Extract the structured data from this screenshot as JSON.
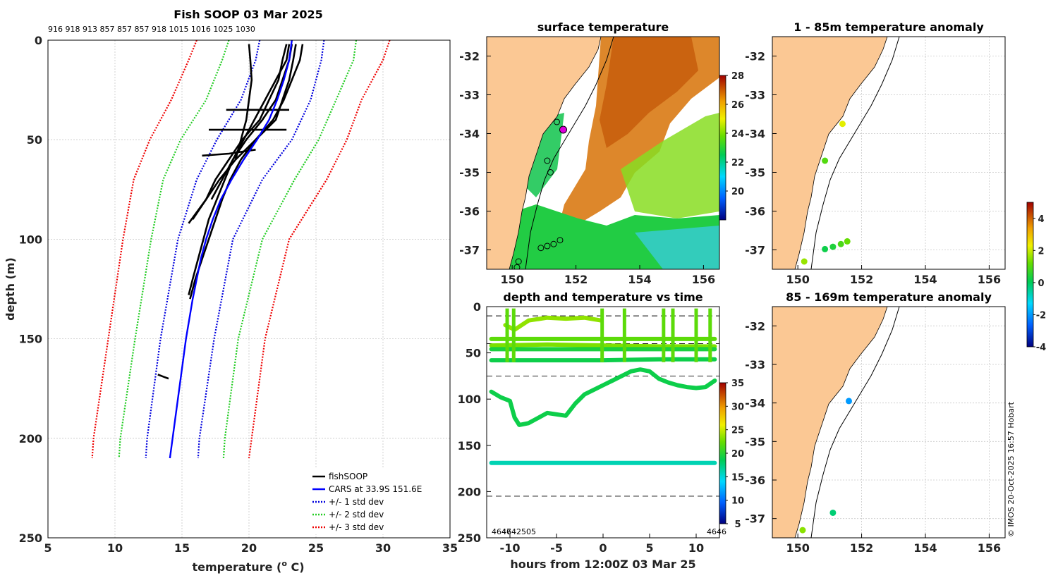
{
  "chart_data": [
    {
      "type": "line",
      "title": "Fish SOOP 03 Mar 2025",
      "top_annotation": "916 918 913 857 857 857 918 1015 1016 1025 1030",
      "xlabel_pre": "temperature (",
      "xlabel_sup": "o",
      "xlabel_post": " C)",
      "ylabel": "depth (m)",
      "xlim": [
        5,
        35
      ],
      "ylim": [
        250,
        0
      ],
      "xticks": [
        5,
        10,
        15,
        20,
        25,
        30,
        35
      ],
      "yticks": [
        0,
        50,
        100,
        150,
        200,
        250
      ],
      "legend": [
        "fishSOOP",
        "CARS at 33.9S 151.6E",
        "+/- 1 std dev",
        "+/- 2 std dev",
        "+/- 3 std dev"
      ],
      "cars_mean": {
        "depth": [
          0,
          10,
          20,
          30,
          40,
          50,
          60,
          70,
          80,
          90,
          100,
          110,
          120,
          130,
          150,
          175,
          200,
          210
        ],
        "temp": [
          23.2,
          23.0,
          22.6,
          22.1,
          21.5,
          20.6,
          19.6,
          18.7,
          17.9,
          17.3,
          16.8,
          16.4,
          16.1,
          15.8,
          15.3,
          14.8,
          14.3,
          14.1
        ]
      },
      "std_dev": [
        {
          "name": "+/- 1 std dev",
          "color": "#0000dd",
          "lower": {
            "depth": [
              0,
              10,
              30,
              50,
              70,
              100,
              150,
              200,
              210
            ],
            "temp": [
              20.8,
              20.5,
              19.4,
              17.6,
              16.1,
              14.7,
              13.4,
              12.4,
              12.3
            ]
          },
          "upper": {
            "depth": [
              0,
              10,
              30,
              50,
              70,
              100,
              150,
              200,
              210
            ],
            "temp": [
              25.6,
              25.4,
              24.6,
              23.2,
              21.0,
              18.8,
              17.4,
              16.3,
              16.2
            ]
          }
        },
        {
          "name": "+/- 2 std dev",
          "color": "#22cc22",
          "lower": {
            "depth": [
              0,
              10,
              30,
              50,
              70,
              100,
              150,
              200,
              210
            ],
            "temp": [
              18.5,
              18.0,
              16.8,
              14.9,
              13.6,
              12.7,
              11.5,
              10.4,
              10.3
            ]
          },
          "upper": {
            "depth": [
              0,
              10,
              30,
              50,
              70,
              100,
              150,
              200,
              210
            ],
            "temp": [
              28.0,
              27.8,
              26.5,
              25.2,
              23.4,
              21.0,
              19.2,
              18.2,
              18.1
            ]
          }
        },
        {
          "name": "+/- 3 std dev",
          "color": "#ee0000",
          "lower": {
            "depth": [
              0,
              10,
              30,
              50,
              70,
              100,
              150,
              200,
              210
            ],
            "temp": [
              16.1,
              15.5,
              14.2,
              12.6,
              11.4,
              10.6,
              9.5,
              8.4,
              8.3
            ]
          },
          "upper": {
            "depth": [
              0,
              10,
              30,
              50,
              70,
              100,
              150,
              200,
              210
            ],
            "temp": [
              30.5,
              30.0,
              28.4,
              27.3,
              25.8,
              23.0,
              21.2,
              20.2,
              20.0
            ]
          }
        }
      ],
      "fishsoop_profiles": [
        {
          "depth": [
            2,
            10,
            20,
            30,
            40,
            50,
            60,
            70,
            80,
            90,
            100,
            110,
            120,
            128
          ],
          "temp": [
            23.2,
            23.0,
            22.5,
            22.0,
            21.0,
            19.8,
            18.8,
            18.2,
            17.6,
            17.0,
            16.6,
            16.2,
            15.8,
            15.5
          ]
        },
        {
          "depth": [
            2,
            10,
            20,
            30,
            40,
            50,
            60,
            70,
            80,
            90
          ],
          "temp": [
            23.5,
            23.3,
            23.0,
            22.5,
            22.0,
            20.5,
            19.0,
            17.8,
            16.8,
            15.8
          ]
        },
        {
          "depth": [
            2,
            10,
            20,
            30,
            40,
            50,
            60,
            70,
            80,
            92
          ],
          "temp": [
            22.8,
            22.5,
            22.2,
            21.5,
            20.8,
            19.5,
            18.5,
            17.5,
            16.8,
            15.5
          ]
        },
        {
          "depth": [
            2,
            10,
            20,
            30,
            40,
            50,
            60,
            70,
            80,
            90,
            100,
            110,
            120,
            130
          ],
          "temp": [
            24.0,
            23.8,
            23.2,
            22.6,
            21.8,
            20.5,
            19.4,
            18.6,
            18.0,
            17.5,
            17.0,
            16.5,
            16.0,
            15.6
          ]
        },
        {
          "depth": [
            2,
            10,
            20,
            30,
            40,
            50,
            60
          ],
          "temp": [
            20.0,
            20.1,
            20.2,
            20.0,
            19.8,
            19.4,
            19.0
          ]
        },
        {
          "depth": [
            2,
            10,
            20,
            30,
            40,
            50,
            60,
            70,
            80
          ],
          "temp": [
            23.0,
            22.8,
            22.0,
            21.2,
            20.4,
            19.6,
            18.8,
            18.0,
            17.2
          ]
        },
        {
          "depth": [
            35,
            35,
            35
          ],
          "temp": [
            18.3,
            20.5,
            23.0
          ]
        },
        {
          "depth": [
            45,
            45,
            45
          ],
          "temp": [
            17.0,
            20.0,
            22.8
          ]
        },
        {
          "depth": [
            58,
            57,
            55
          ],
          "temp": [
            16.5,
            18.5,
            20.5
          ]
        },
        {
          "depth": [
            168,
            169,
            170
          ],
          "temp": [
            13.2,
            13.6,
            14.0
          ]
        }
      ]
    },
    {
      "type": "heatmap",
      "title": "surface temperature",
      "xticks": [
        "150",
        "152",
        "154",
        "156"
      ],
      "yticks": [
        "-32",
        "-33",
        "-34",
        "-35",
        "-36",
        "-37"
      ],
      "xlim": [
        149.2,
        156.5
      ],
      "ylim": [
        -37.5,
        -31.5
      ],
      "colorbar": {
        "min": 18,
        "max": 28,
        "ticks": [
          "20",
          "22",
          "24",
          "26",
          "28"
        ]
      },
      "stations": [
        {
          "lon": 151.6,
          "lat": -33.9,
          "highlight": true
        },
        {
          "lon": 151.4,
          "lat": -33.7
        },
        {
          "lon": 151.1,
          "lat": -34.7
        },
        {
          "lon": 151.2,
          "lat": -35.0
        },
        {
          "lon": 150.9,
          "lat": -36.95
        },
        {
          "lon": 151.1,
          "lat": -36.9
        },
        {
          "lon": 151.3,
          "lat": -36.85
        },
        {
          "lon": 151.5,
          "lat": -36.75
        },
        {
          "lon": 150.2,
          "lat": -37.3
        },
        {
          "lon": 150.15,
          "lat": -37.45
        }
      ]
    },
    {
      "type": "scatter",
      "title": "depth and temperature vs time",
      "xlabel": "hours from 12:00Z 03 Mar 25",
      "xticks": [
        "-10",
        "-5",
        "0",
        "5",
        "10"
      ],
      "yticks": [
        "0",
        "50",
        "100",
        "150",
        "200",
        "250"
      ],
      "xlim": [
        -12.5,
        12.5
      ],
      "ylim": [
        250,
        0
      ],
      "reference_depths": [
        10,
        40,
        75,
        205
      ],
      "colorbar": {
        "min": 5,
        "max": 35,
        "ticks": [
          "5",
          "10",
          "15",
          "20",
          "25",
          "30",
          "35"
        ]
      },
      "bottom_left_label": "4646",
      "bottom_left_label_2": "4742505",
      "bottom_right_label": "4646",
      "tracks": [
        {
          "temp": 23.5,
          "hours": [
            -10.5,
            -9.5,
            -8,
            -6,
            -4,
            -2,
            -0.2
          ],
          "depth": [
            20,
            25,
            15,
            12,
            13,
            12,
            15
          ]
        },
        {
          "temp": 22.0,
          "hours": [
            -12,
            -6,
            0,
            6,
            12
          ],
          "depth": [
            35,
            35,
            35,
            35,
            35
          ]
        },
        {
          "temp": 23.0,
          "hours": [
            -12,
            -6,
            0,
            6,
            12
          ],
          "depth": [
            42,
            41,
            42,
            43,
            43
          ]
        },
        {
          "temp": 19.5,
          "hours": [
            -12,
            -6,
            0,
            6,
            12
          ],
          "depth": [
            46,
            46,
            46,
            46,
            46
          ]
        },
        {
          "temp": 19.0,
          "hours": [
            -12,
            -6,
            0,
            6,
            12
          ],
          "depth": [
            58,
            58,
            58,
            57,
            57
          ]
        },
        {
          "temp": 19.0,
          "hours": [
            -12,
            -11,
            -10,
            -9.5,
            -9,
            -8,
            -6,
            -4,
            -3,
            -2,
            -1,
            0,
            1,
            2,
            3,
            4,
            5,
            6,
            7,
            8,
            9,
            10,
            11,
            12
          ],
          "depth": [
            92,
            98,
            102,
            120,
            128,
            126,
            115,
            118,
            105,
            95,
            90,
            85,
            80,
            75,
            70,
            68,
            70,
            78,
            82,
            85,
            87,
            88,
            87,
            80
          ]
        },
        {
          "temp": 16.0,
          "hours": [
            -12,
            -6,
            0,
            6,
            12
          ],
          "depth": [
            169,
            169,
            169,
            169,
            169
          ]
        }
      ]
    },
    {
      "type": "scatter",
      "title": "1 - 85m temperature anomaly",
      "xticks": [
        "150",
        "152",
        "154",
        "156"
      ],
      "yticks": [
        "-32",
        "-33",
        "-34",
        "-35",
        "-36",
        "-37"
      ],
      "points": [
        {
          "lon": 151.4,
          "lat": -33.75,
          "anomaly": 2.2
        },
        {
          "lon": 150.85,
          "lat": -34.7,
          "anomaly": 1.0
        },
        {
          "lon": 150.85,
          "lat": -36.98,
          "anomaly": 0.2
        },
        {
          "lon": 151.1,
          "lat": -36.92,
          "anomaly": 0.4
        },
        {
          "lon": 151.35,
          "lat": -36.85,
          "anomaly": 0.9
        },
        {
          "lon": 151.55,
          "lat": -36.78,
          "anomaly": 1.2
        },
        {
          "lon": 150.2,
          "lat": -37.3,
          "anomaly": 1.6
        }
      ]
    },
    {
      "type": "scatter",
      "title": "85 - 169m temperature anomaly",
      "xticks": [
        "150",
        "152",
        "154",
        "156"
      ],
      "yticks": [
        "-32",
        "-33",
        "-34",
        "-35",
        "-36",
        "-37"
      ],
      "points": [
        {
          "lon": 151.6,
          "lat": -33.95,
          "anomaly": -2.0
        },
        {
          "lon": 151.1,
          "lat": -36.85,
          "anomaly": -0.2
        },
        {
          "lon": 150.15,
          "lat": -37.3,
          "anomaly": 1.5
        }
      ]
    }
  ],
  "anomaly_colorbar": {
    "min": -4,
    "max": 5,
    "ticks": [
      "4",
      "2",
      "0",
      "-2",
      "-4"
    ]
  },
  "credit": "© IMOS 20-Oct-2025 16:57 Hobart",
  "colors": {
    "land": "#fbc894",
    "cars": "#0000ff",
    "profile": "#000000"
  }
}
